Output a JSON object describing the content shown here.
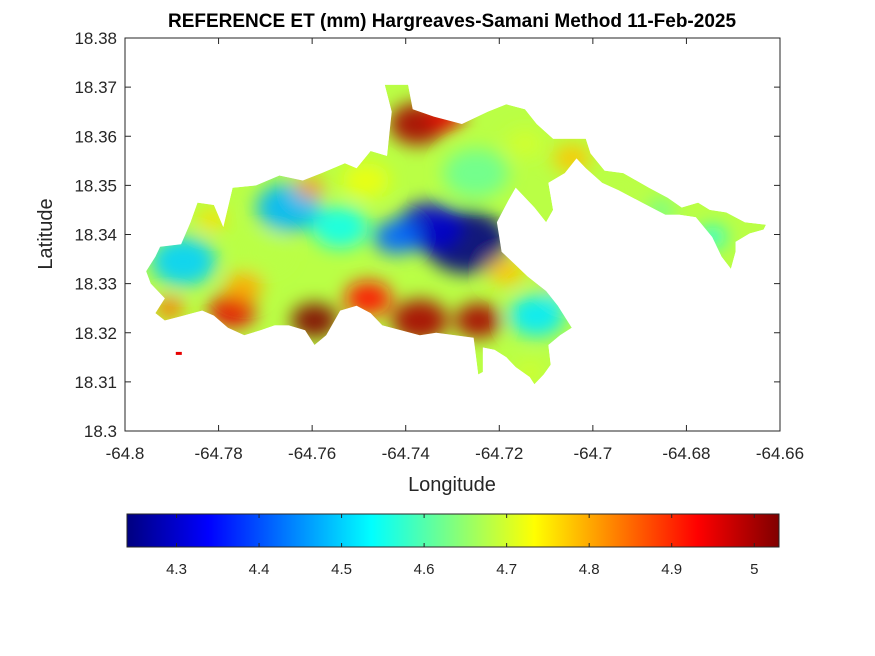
{
  "chart_data": {
    "type": "heatmap",
    "title": "REFERENCE ET (mm) Hargreaves-Samani Method  11-Feb-2025",
    "xlabel": "Longitude",
    "ylabel": "Latitude",
    "xlim": [
      -64.8,
      -64.66
    ],
    "ylim": [
      18.3,
      18.38
    ],
    "x_ticks": [
      "-64.8",
      "-64.78",
      "-64.76",
      "-64.74",
      "-64.72",
      "-64.7",
      "-64.68",
      "-64.66"
    ],
    "y_ticks": [
      "18.3",
      "18.31",
      "18.32",
      "18.33",
      "18.34",
      "18.35",
      "18.36",
      "18.37",
      "18.38"
    ],
    "colorbar": {
      "orientation": "horizontal",
      "colormap": "jet",
      "range": [
        4.24,
        5.03
      ],
      "ticks": [
        "4.3",
        "4.4",
        "4.5",
        "4.6",
        "4.7",
        "4.8",
        "4.9",
        "5"
      ]
    },
    "grid": false,
    "island_outline": [
      [
        -64.7935,
        18.3355
      ],
      [
        -64.7925,
        18.3375
      ],
      [
        -64.788,
        18.338
      ],
      [
        -64.786,
        18.3425
      ],
      [
        -64.7845,
        18.3465
      ],
      [
        -64.781,
        18.346
      ],
      [
        -64.779,
        18.3415
      ],
      [
        -64.777,
        18.3495
      ],
      [
        -64.772,
        18.35
      ],
      [
        -64.767,
        18.352
      ],
      [
        -64.762,
        18.351
      ],
      [
        -64.758,
        18.3525
      ],
      [
        -64.753,
        18.3545
      ],
      [
        -64.7505,
        18.3535
      ],
      [
        -64.7475,
        18.357
      ],
      [
        -64.744,
        18.356
      ],
      [
        -64.743,
        18.365
      ],
      [
        -64.7445,
        18.3705
      ],
      [
        -64.7395,
        18.3705
      ],
      [
        -64.7385,
        18.3655
      ],
      [
        -64.734,
        18.364
      ],
      [
        -64.728,
        18.3625
      ],
      [
        -64.7225,
        18.365
      ],
      [
        -64.7185,
        18.3665
      ],
      [
        -64.7145,
        18.3655
      ],
      [
        -64.712,
        18.3625
      ],
      [
        -64.7085,
        18.3595
      ],
      [
        -64.7015,
        18.3595
      ],
      [
        -64.7005,
        18.3565
      ],
      [
        -64.6975,
        18.353
      ],
      [
        -64.6935,
        18.3525
      ],
      [
        -64.688,
        18.3495
      ],
      [
        -64.684,
        18.3475
      ],
      [
        -64.681,
        18.3455
      ],
      [
        -64.6775,
        18.3465
      ],
      [
        -64.675,
        18.345
      ],
      [
        -64.6715,
        18.3445
      ],
      [
        -64.6675,
        18.3425
      ],
      [
        -64.663,
        18.342
      ],
      [
        -64.6635,
        18.341
      ],
      [
        -64.6665,
        18.3402
      ],
      [
        -64.6695,
        18.3385
      ],
      [
        -64.6695,
        18.3365
      ],
      [
        -64.6705,
        18.333
      ],
      [
        -64.6725,
        18.3355
      ],
      [
        -64.6745,
        18.3395
      ],
      [
        -64.678,
        18.3435
      ],
      [
        -64.6815,
        18.344
      ],
      [
        -64.6845,
        18.344
      ],
      [
        -64.6895,
        18.3465
      ],
      [
        -64.6945,
        18.349
      ],
      [
        -64.698,
        18.3505
      ],
      [
        -64.7015,
        18.3535
      ],
      [
        -64.7035,
        18.3555
      ],
      [
        -64.706,
        18.3525
      ],
      [
        -64.7095,
        18.3505
      ],
      [
        -64.7085,
        18.345
      ],
      [
        -64.71,
        18.3425
      ],
      [
        -64.7125,
        18.3455
      ],
      [
        -64.7165,
        18.3495
      ],
      [
        -64.718,
        18.347
      ],
      [
        -64.7205,
        18.3425
      ],
      [
        -64.7195,
        18.3365
      ],
      [
        -64.714,
        18.3315
      ],
      [
        -64.71,
        18.3285
      ],
      [
        -64.7075,
        18.3255
      ],
      [
        -64.7045,
        18.321
      ],
      [
        -64.707,
        18.3195
      ],
      [
        -64.7095,
        18.3175
      ],
      [
        -64.709,
        18.3135
      ],
      [
        -64.7105,
        18.3115
      ],
      [
        -64.7125,
        18.3095
      ],
      [
        -64.7135,
        18.311
      ],
      [
        -64.7165,
        18.313
      ],
      [
        -64.7185,
        18.315
      ],
      [
        -64.721,
        18.3165
      ],
      [
        -64.7235,
        18.317
      ],
      [
        -64.7235,
        18.312
      ],
      [
        -64.7245,
        18.3115
      ],
      [
        -64.7255,
        18.319
      ],
      [
        -64.7295,
        18.3195
      ],
      [
        -64.7335,
        18.32
      ],
      [
        -64.737,
        18.3195
      ],
      [
        -64.741,
        18.3205
      ],
      [
        -64.745,
        18.3215
      ],
      [
        -64.7475,
        18.324
      ],
      [
        -64.7505,
        18.3255
      ],
      [
        -64.754,
        18.3245
      ],
      [
        -64.757,
        18.3195
      ],
      [
        -64.7595,
        18.3175
      ],
      [
        -64.7615,
        18.3205
      ],
      [
        -64.765,
        18.3215
      ],
      [
        -64.768,
        18.3215
      ],
      [
        -64.771,
        18.3205
      ],
      [
        -64.7745,
        18.3195
      ],
      [
        -64.778,
        18.321
      ],
      [
        -64.781,
        18.3235
      ],
      [
        -64.7835,
        18.3245
      ],
      [
        -64.7875,
        18.3235
      ],
      [
        -64.7915,
        18.3225
      ],
      [
        -64.7935,
        18.324
      ],
      [
        -64.7915,
        18.327
      ],
      [
        -64.7945,
        18.33
      ],
      [
        -64.7955,
        18.3325
      ]
    ],
    "islet": [
      -64.7885,
      18.3158
    ],
    "et_field": [
      {
        "lon": -64.727,
        "lat": 18.3385,
        "value": 4.24,
        "radius": 0.009
      },
      {
        "lon": -64.735,
        "lat": 18.3415,
        "value": 4.3,
        "radius": 0.007
      },
      {
        "lon": -64.742,
        "lat": 18.3395,
        "value": 4.42,
        "radius": 0.005
      },
      {
        "lon": -64.712,
        "lat": 18.3235,
        "value": 4.52,
        "radius": 0.006
      },
      {
        "lon": -64.705,
        "lat": 18.3295,
        "value": 4.6,
        "radius": 0.005
      },
      {
        "lon": -64.765,
        "lat": 18.3455,
        "value": 4.48,
        "radius": 0.007
      },
      {
        "lon": -64.754,
        "lat": 18.3415,
        "value": 4.55,
        "radius": 0.006
      },
      {
        "lon": -64.7875,
        "lat": 18.3345,
        "value": 4.5,
        "radius": 0.007
      },
      {
        "lon": -64.77,
        "lat": 18.3365,
        "value": 4.68,
        "radius": 0.005
      },
      {
        "lon": -64.725,
        "lat": 18.3525,
        "value": 4.62,
        "radius": 0.007
      },
      {
        "lon": -64.7145,
        "lat": 18.3585,
        "value": 4.7,
        "radius": 0.004
      },
      {
        "lon": -64.7045,
        "lat": 18.3555,
        "value": 4.78,
        "radius": 0.004
      },
      {
        "lon": -64.7485,
        "lat": 18.351,
        "value": 4.72,
        "radius": 0.005
      },
      {
        "lon": -64.7375,
        "lat": 18.3625,
        "value": 5.0,
        "radius": 0.006
      },
      {
        "lon": -64.7315,
        "lat": 18.364,
        "value": 4.95,
        "radius": 0.004
      },
      {
        "lon": -64.7595,
        "lat": 18.3225,
        "value": 5.03,
        "radius": 0.005
      },
      {
        "lon": -64.748,
        "lat": 18.327,
        "value": 4.92,
        "radius": 0.005
      },
      {
        "lon": -64.737,
        "lat": 18.3225,
        "value": 5.0,
        "radius": 0.006
      },
      {
        "lon": -64.7245,
        "lat": 18.3225,
        "value": 5.0,
        "radius": 0.005
      },
      {
        "lon": -64.777,
        "lat": 18.3245,
        "value": 4.95,
        "radius": 0.005
      },
      {
        "lon": -64.7905,
        "lat": 18.325,
        "value": 4.85,
        "radius": 0.003
      },
      {
        "lon": -64.7745,
        "lat": 18.3295,
        "value": 4.8,
        "radius": 0.004
      },
      {
        "lon": -64.7185,
        "lat": 18.3325,
        "value": 4.78,
        "radius": 0.004
      },
      {
        "lon": -64.7075,
        "lat": 18.3315,
        "value": 4.82,
        "radius": 0.003
      },
      {
        "lon": -64.7815,
        "lat": 18.343,
        "value": 4.76,
        "radius": 0.003
      },
      {
        "lon": -64.7605,
        "lat": 18.3495,
        "value": 4.82,
        "radius": 0.003
      },
      {
        "lon": -64.7135,
        "lat": 18.312,
        "value": 4.7,
        "radius": 0.003
      },
      {
        "lon": -64.6745,
        "lat": 18.3395,
        "value": 4.55,
        "radius": 0.003
      },
      {
        "lon": -64.6855,
        "lat": 18.345,
        "value": 4.62,
        "radius": 0.003
      },
      {
        "lon": -64.6945,
        "lat": 18.349,
        "value": 4.68,
        "radius": 0.003
      }
    ]
  }
}
